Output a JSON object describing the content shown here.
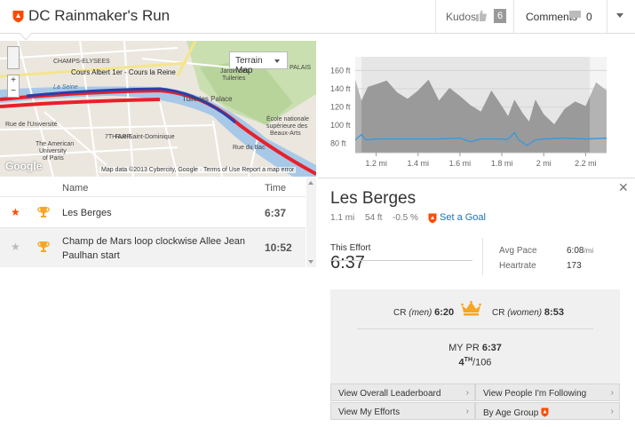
{
  "header": {
    "title": "DC Rainmaker's Run",
    "kudos_label": "Kudos",
    "kudos_count": "6",
    "comments_label": "Comments",
    "comments_count": "0"
  },
  "map": {
    "map_type": "Terrain Map",
    "attribution": "Map data ©2013 Cybercity, Google · Terms of Use   Report a map error",
    "google_logo": "Google",
    "labels": [
      "CHAMPS-ELYSEES",
      "Cours Albert 1er",
      "Cours la Reine",
      "La Seine",
      "Jardin des Tuileries",
      "Tuileries Palace",
      "PALAIS",
      "Rue de l'Université",
      "Rue Saint-Dominique",
      "The American University of Paris",
      "7TH ARR.",
      "École nationale supérieure des Beaux-Arts",
      "Rue du Bac"
    ]
  },
  "segments": {
    "col_name": "Name",
    "col_time": "Time",
    "rows": [
      {
        "name": "Les Berges",
        "time": "6:37",
        "starred": true
      },
      {
        "name": "Champ de Mars loop clockwise Allee Jean Paulhan start",
        "time": "10:52",
        "starred": false
      }
    ]
  },
  "chart_data": {
    "type": "area",
    "ylabel": "ft",
    "y_ticks": [
      "80 ft",
      "100 ft",
      "120 ft",
      "140 ft",
      "160 ft"
    ],
    "x_ticks": [
      "1.2 mi",
      "1.4 mi",
      "1.6 mi",
      "1.8 mi",
      "2 mi",
      "2.2 mi"
    ],
    "ylim": [
      70,
      175
    ],
    "xlim": [
      1.1,
      2.3
    ],
    "highlight_range": [
      1.13,
      2.22
    ],
    "series": [
      {
        "kind": "elevation",
        "x": [
          1.1,
          1.13,
          1.16,
          1.2,
          1.25,
          1.3,
          1.35,
          1.4,
          1.45,
          1.5,
          1.55,
          1.6,
          1.65,
          1.7,
          1.75,
          1.8,
          1.83,
          1.86,
          1.9,
          1.93,
          1.96,
          2.0,
          2.05,
          2.1,
          2.15,
          2.2,
          2.25,
          2.3
        ],
        "y": [
          150,
          127,
          142,
          145,
          149,
          136,
          129,
          138,
          150,
          127,
          141,
          132,
          122,
          115,
          138,
          121,
          110,
          128,
          113,
          104,
          128,
          112,
          101,
          118,
          126,
          121,
          147,
          138
        ]
      },
      {
        "kind": "heartrate",
        "x": [
          1.1,
          1.13,
          1.15,
          1.2,
          1.3,
          1.4,
          1.5,
          1.6,
          1.65,
          1.7,
          1.75,
          1.8,
          1.82,
          1.84,
          1.86,
          1.88,
          1.92,
          1.96,
          2.0,
          2.1,
          2.2,
          2.3
        ],
        "y": [
          84,
          90,
          84,
          85,
          85,
          85,
          85,
          86,
          82,
          85,
          85,
          85,
          84,
          87,
          92,
          84,
          78,
          84,
          85,
          86,
          85,
          86
        ]
      }
    ]
  },
  "detail": {
    "title": "Les Berges",
    "distance": "1.1 mi",
    "elevation": "54 ft",
    "grade": "-0.5 %",
    "set_goal": "Set a Goal",
    "effort_label": "This Effort",
    "effort_time": "6:37",
    "avg_pace_label": "Avg Pace",
    "avg_pace_value": "6:08",
    "avg_pace_unit": "/mi",
    "heartrate_label": "Heartrate",
    "heartrate_value": "173",
    "cr_men_prefix": "CR",
    "cr_men_label": "(men)",
    "cr_men_time": "6:20",
    "cr_women_prefix": "CR",
    "cr_women_label": "(women)",
    "cr_women_time": "8:53",
    "my_pr_label": "MY PR",
    "my_pr_time": "6:37",
    "rank": "4",
    "rank_suffix": "TH",
    "rank_total": "/106",
    "links": [
      "View Overall Leaderboard",
      "View People I'm Following",
      "View My Efforts",
      "By Age Group"
    ]
  },
  "colors": {
    "brand_orange": "#fc4c02",
    "link_blue": "#1a73b8",
    "route_red": "#e8202a",
    "route_blue": "#2a3fa8",
    "heartrate_blue": "#3399dd",
    "crown_gold": "#f5a623"
  }
}
